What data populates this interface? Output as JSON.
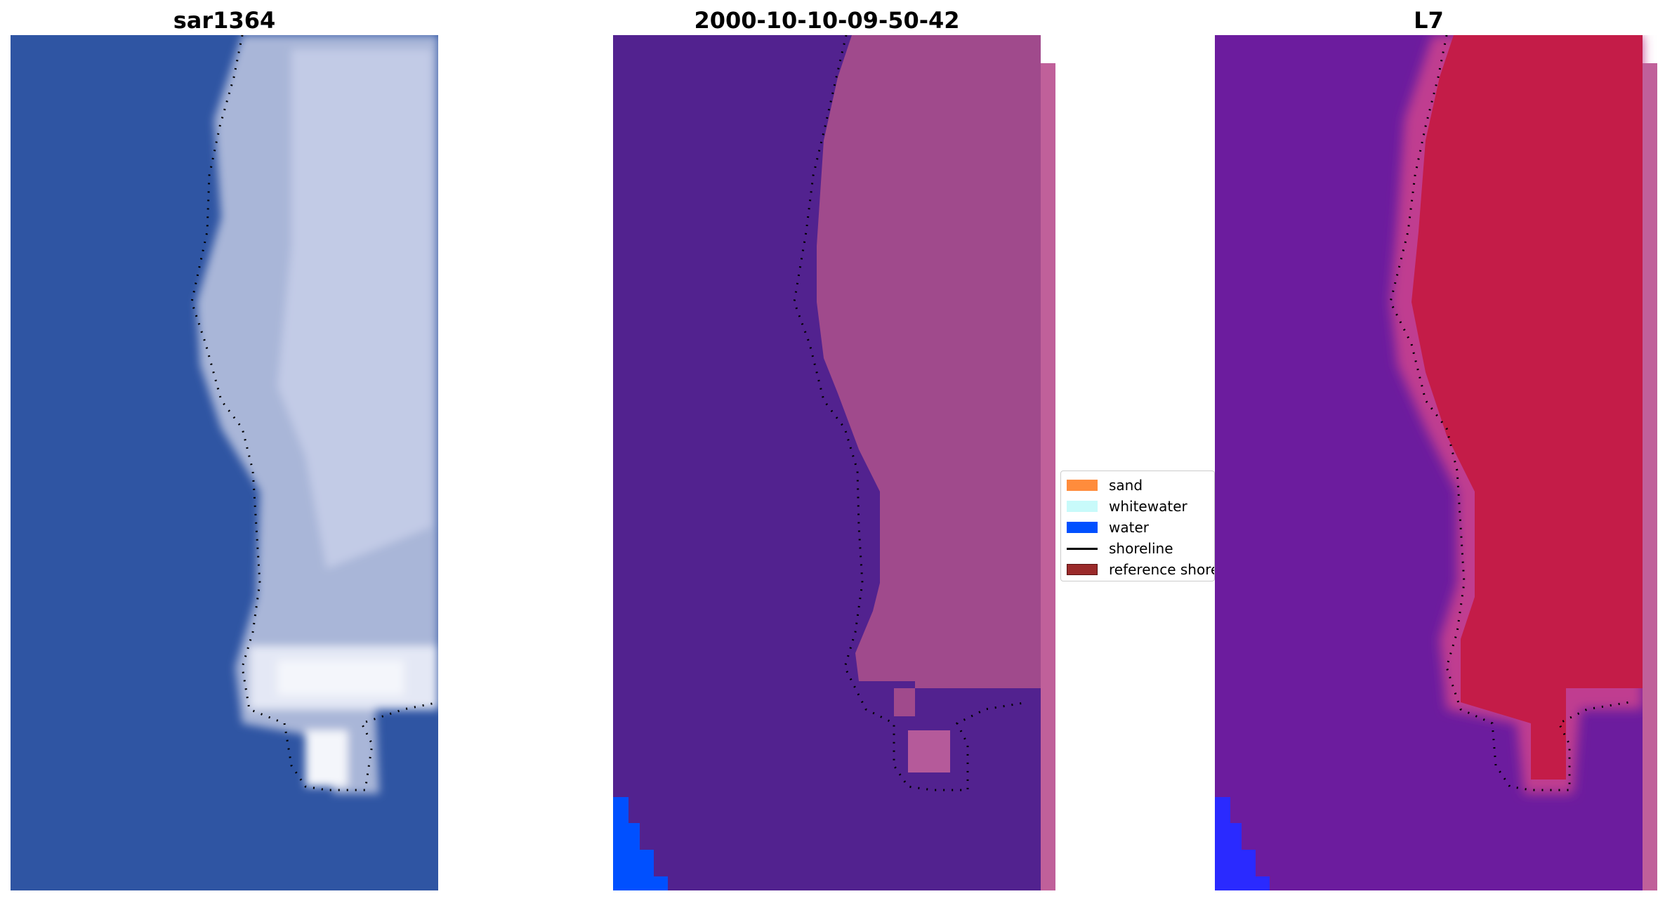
{
  "figure": {
    "panels": [
      {
        "title": "sar1364"
      },
      {
        "title": "2000-10-10-09-50-42"
      },
      {
        "title": "L7"
      }
    ],
    "legend": {
      "items": [
        {
          "label": "sand",
          "color": "#ff8c3c",
          "kind": "patch"
        },
        {
          "label": "whitewater",
          "color": "#c8fafa",
          "kind": "patch"
        },
        {
          "label": "water",
          "color": "#0050ff",
          "kind": "patch"
        },
        {
          "label": "shoreline",
          "color": "#000000",
          "kind": "line"
        },
        {
          "label": "reference shoreline",
          "color": "#9a2a2a",
          "kind": "patch"
        }
      ]
    },
    "colors": {
      "rgb_water": "#2f55a3",
      "rgb_land": "#b7c3e0",
      "classification_background": "#52228f",
      "classification_land": "#a04a8c",
      "classification_strip": "#c0609a",
      "classification_water": "#0050ff",
      "index_background": "#6c1c9e",
      "index_land": "#c41c48",
      "index_margin": "#c03c90",
      "index_water": "#2a2aff"
    }
  }
}
